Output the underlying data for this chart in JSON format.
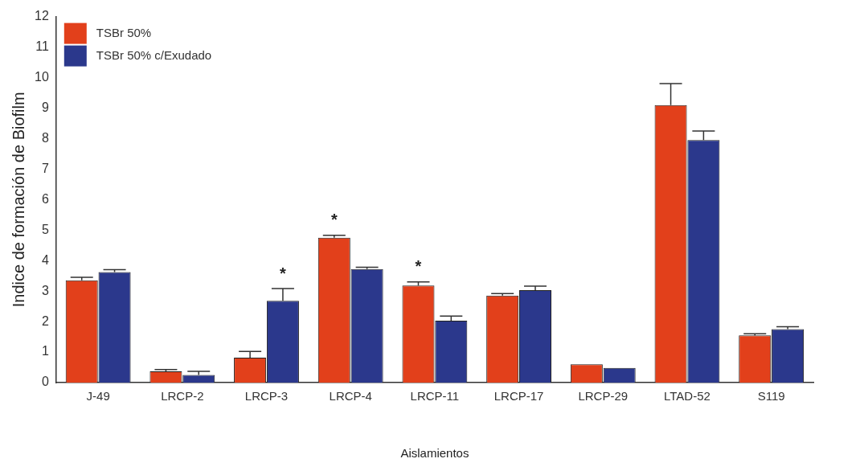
{
  "chart_data": {
    "type": "bar",
    "xlabel": "Aislamientos",
    "ylabel": "Indice de formación de Biofilm",
    "categories": [
      "J-49",
      "LRCP-2",
      "LRCP-3",
      "LRCP-4",
      "LRCP-11",
      "LRCP-17",
      "LRCP-29",
      "LTAD-52",
      "S119"
    ],
    "series": [
      {
        "name": "TSBr 50%",
        "color": "#e2401b",
        "values": [
          3.35,
          0.37,
          0.82,
          4.75,
          3.18,
          2.85,
          0.6,
          9.1,
          1.55
        ],
        "errors": [
          [
            3.35,
            3.45
          ],
          [
            0.37,
            0.43
          ],
          [
            0.82,
            1.02
          ],
          [
            4.75,
            4.83
          ],
          [
            3.18,
            3.3
          ],
          [
            2.85,
            2.92
          ],
          null,
          [
            9.1,
            9.8
          ],
          [
            1.55,
            1.6
          ]
        ]
      },
      {
        "name": "TSBr 50% c/Exudado",
        "color": "#2b388c",
        "values": [
          3.62,
          0.25,
          2.68,
          3.72,
          2.03,
          3.03,
          0.48,
          7.95,
          1.75
        ],
        "errors": [
          [
            3.62,
            3.7
          ],
          [
            0.25,
            0.37
          ],
          [
            2.68,
            3.08
          ],
          [
            3.72,
            3.78
          ],
          [
            2.03,
            2.18
          ],
          [
            3.03,
            3.16
          ],
          null,
          [
            7.95,
            8.25
          ],
          [
            1.75,
            1.83
          ]
        ]
      }
    ],
    "ylim": [
      0,
      12
    ],
    "yticks": [
      0,
      1,
      2,
      3,
      4,
      5,
      6,
      7,
      8,
      9,
      10,
      11,
      12
    ],
    "grid": false,
    "legend": "top left",
    "annotations": [
      {
        "text": "*",
        "x": "LRCP-3",
        "y": 2.68
      },
      {
        "text": "*",
        "x": "LRCP-4",
        "y": 4.75
      },
      {
        "text": "*",
        "x": "LRCP-11",
        "y": 3.18
      }
    ]
  }
}
